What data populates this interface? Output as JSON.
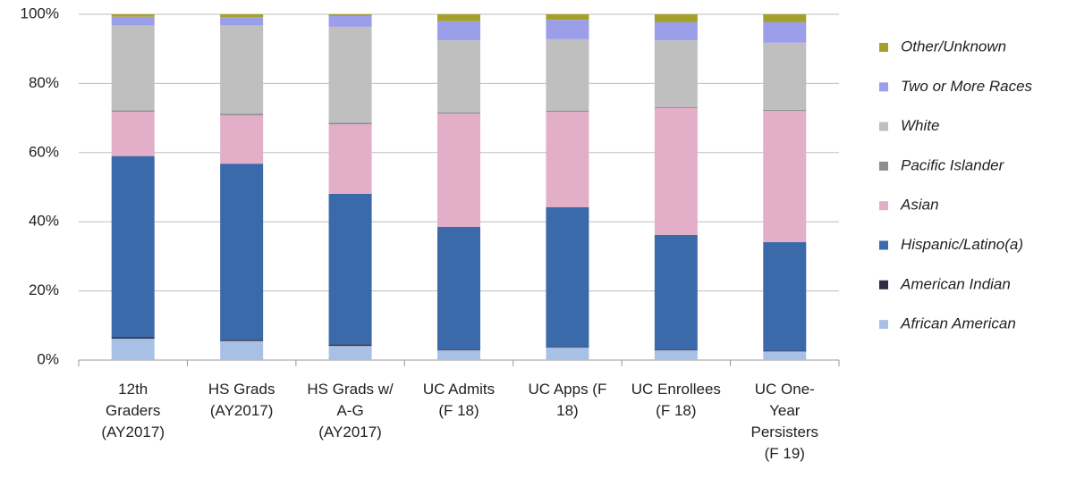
{
  "chart_data": {
    "type": "stacked_bar",
    "categories": [
      "12th\nGraders\n(AY2017)",
      "HS Grads\n(AY2017)",
      "HS Grads w/\nA-G\n(AY2017)",
      "UC Admits\n(F 18)",
      "UC Apps (F\n18)",
      "UC Enrollees\n(F 18)",
      "UC One-\nYear\nPersisters\n(F 19)"
    ],
    "series": [
      {
        "name": "African American",
        "color": "#a9c0e6",
        "values": [
          6.2,
          5.5,
          4.1,
          2.8,
          3.6,
          2.8,
          2.5
        ]
      },
      {
        "name": "American Indian",
        "color": "#2b2d42",
        "values": [
          0.4,
          0.3,
          0.4,
          0.2,
          0.2,
          0.2,
          0.2
        ]
      },
      {
        "name": "Hispanic/Latino(a)",
        "color": "#3b6aaa",
        "values": [
          52.4,
          51.0,
          43.6,
          35.5,
          40.4,
          33.2,
          31.4
        ]
      },
      {
        "name": "Asian",
        "color": "#e2aec8",
        "values": [
          12.8,
          14.0,
          20.1,
          32.8,
          27.6,
          36.7,
          38.0
        ]
      },
      {
        "name": "Pacific Islander",
        "color": "#8c8c8c",
        "values": [
          0.4,
          0.4,
          0.4,
          0.3,
          0.3,
          0.3,
          0.3
        ]
      },
      {
        "name": "White",
        "color": "#bfbfbf",
        "values": [
          24.6,
          25.6,
          27.8,
          20.9,
          20.7,
          19.3,
          19.4
        ]
      },
      {
        "name": "Two or More Races",
        "color": "#9b9ee8",
        "values": [
          2.5,
          2.4,
          3.1,
          5.5,
          5.6,
          5.2,
          5.9
        ]
      },
      {
        "name": "Other/Unknown",
        "color": "#a4a12a",
        "values": [
          0.7,
          0.8,
          0.5,
          2.0,
          1.6,
          2.3,
          2.3
        ]
      }
    ],
    "ylim": [
      0,
      100
    ],
    "yticks": [
      {
        "value": 0,
        "label": "0%"
      },
      {
        "value": 20,
        "label": "20%"
      },
      {
        "value": 40,
        "label": "40%"
      },
      {
        "value": 60,
        "label": "60%"
      },
      {
        "value": 80,
        "label": "80%"
      },
      {
        "value": 100,
        "label": "100%"
      }
    ],
    "grid": true,
    "legend": "right"
  }
}
